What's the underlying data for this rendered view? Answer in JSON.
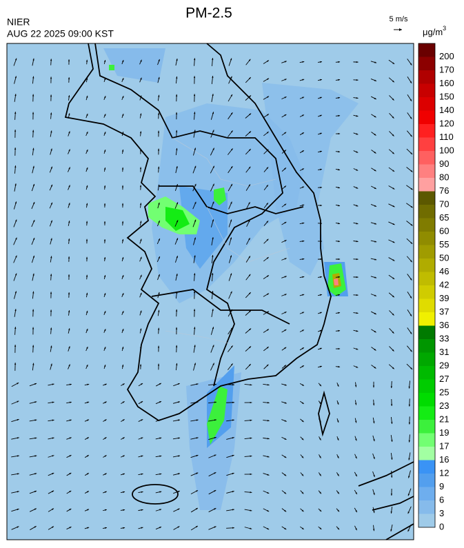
{
  "header": {
    "title": "PM-2.5",
    "agency": "NIER",
    "datetime": "AUG 22 2025 09:00 KST"
  },
  "wind_scale": {
    "label": "5 m/s"
  },
  "colorbar": {
    "unit": "μg/m",
    "unit_exponent": "3",
    "levels": [
      0,
      3,
      6,
      9,
      12,
      16,
      17,
      19,
      21,
      23,
      25,
      27,
      29,
      31,
      33,
      36,
      37,
      39,
      42,
      46,
      50,
      55,
      60,
      65,
      70,
      76,
      80,
      90,
      100,
      110,
      120,
      140,
      150,
      160,
      170,
      200
    ],
    "colors": [
      "#9fcbe9",
      "#86bbeb",
      "#6eaeee",
      "#539fee",
      "#3a93f5",
      "#a2ffa2",
      "#72ff72",
      "#3cf03c",
      "#14ec14",
      "#00dc00",
      "#00cc00",
      "#00ba00",
      "#00a800",
      "#009600",
      "#007a00",
      "#f0f000",
      "#e0dc00",
      "#d0cc00",
      "#c0bc00",
      "#b0ac00",
      "#a09c00",
      "#908c00",
      "#807c00",
      "#706c00",
      "#5c5800",
      "#ffa0a0",
      "#ff8080",
      "#ff6060",
      "#ff4040",
      "#ff2020",
      "#f00000",
      "#dc0000",
      "#c80000",
      "#b00000",
      "#8c0000",
      "#6a0000"
    ]
  }
}
